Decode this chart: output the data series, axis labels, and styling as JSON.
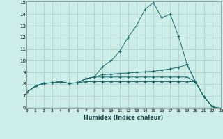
{
  "xlabel": "Humidex (Indice chaleur)",
  "bg_color": "#cdeee8",
  "grid_color": "#a8cccc",
  "line_color": "#1a6b6b",
  "xlim_min": 0,
  "xlim_max": 23,
  "ylim_min": 6,
  "ylim_max": 15,
  "series1_y": [
    7.3,
    7.8,
    8.05,
    8.1,
    8.2,
    8.05,
    8.1,
    8.45,
    8.6,
    9.5,
    10.0,
    10.8,
    12.0,
    13.0,
    14.4,
    15.0,
    13.7,
    14.0,
    12.1,
    9.7,
    8.2,
    6.9,
    6.05,
    5.9
  ],
  "series2_y": [
    7.3,
    7.8,
    8.05,
    8.1,
    8.2,
    8.05,
    8.1,
    8.45,
    8.6,
    8.8,
    8.85,
    8.9,
    8.95,
    9.0,
    9.05,
    9.1,
    9.2,
    9.3,
    9.45,
    9.65,
    8.2,
    6.9,
    6.05,
    5.9
  ],
  "series3_y": [
    7.3,
    7.8,
    8.05,
    8.1,
    8.2,
    8.05,
    8.1,
    8.2,
    8.2,
    8.2,
    8.2,
    8.2,
    8.2,
    8.2,
    8.2,
    8.2,
    8.2,
    8.2,
    8.2,
    8.2,
    8.2,
    6.9,
    6.05,
    5.9
  ],
  "series4_y": [
    7.3,
    7.8,
    8.05,
    8.1,
    8.2,
    8.05,
    8.1,
    8.45,
    8.6,
    8.6,
    8.6,
    8.6,
    8.6,
    8.6,
    8.6,
    8.6,
    8.6,
    8.6,
    8.6,
    8.6,
    8.2,
    6.9,
    6.05,
    5.9
  ],
  "xtick_labels": [
    "0",
    "1",
    "2",
    "3",
    "4",
    "5",
    "6",
    "7",
    "8",
    "9",
    "10",
    "11",
    "12",
    "13",
    "14",
    "15",
    "16",
    "17",
    "18",
    "19",
    "20",
    "21",
    "22",
    "23"
  ],
  "ytick_labels": [
    "6",
    "7",
    "8",
    "9",
    "10",
    "11",
    "12",
    "13",
    "14",
    "15"
  ]
}
